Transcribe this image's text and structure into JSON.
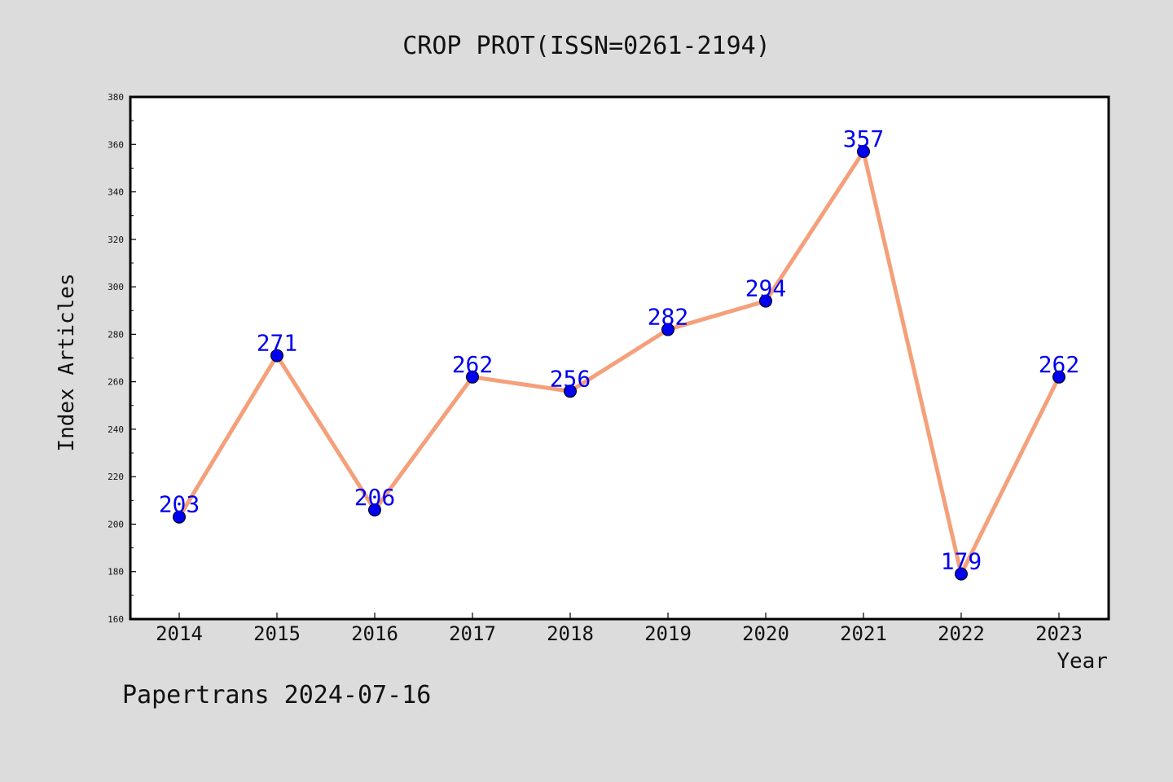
{
  "chart_data": {
    "type": "line",
    "title": "CROP PROT(ISSN=0261-2194)",
    "xlabel": "Year",
    "ylabel": "Index Articles",
    "categories": [
      "2014",
      "2015",
      "2016",
      "2017",
      "2018",
      "2019",
      "2020",
      "2021",
      "2022",
      "2023"
    ],
    "series": [
      {
        "values": [
          203,
          271,
          206,
          262,
          256,
          282,
          294,
          357,
          179,
          262
        ],
        "line_color": "#f4a07a",
        "marker_color": "#0000ee"
      }
    ],
    "ylim": [
      160,
      380
    ],
    "y_ticks": [
      160,
      180,
      200,
      220,
      240,
      260,
      280,
      300,
      320,
      340,
      360,
      380
    ],
    "grid": false,
    "legend": "none",
    "data_labels": true,
    "data_label_color": "#0000ee"
  },
  "footer": {
    "text": "Papertrans 2024-07-16"
  }
}
